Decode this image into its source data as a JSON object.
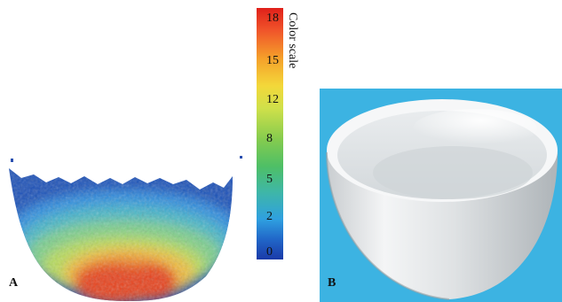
{
  "panel_a": {
    "label": "A",
    "color_scale": {
      "title": "Color scale",
      "ticks": [
        "18",
        "15",
        "12",
        "8",
        "5",
        "2",
        "0"
      ]
    }
  },
  "panel_b": {
    "label": "B",
    "background_color": "#3cb3e2"
  },
  "colors": {
    "high": "#e0201a",
    "mid_high": "#f5a02a",
    "mid": "#86cc4e",
    "low": "#2fa0e0",
    "lowest": "#1a3aa8"
  }
}
